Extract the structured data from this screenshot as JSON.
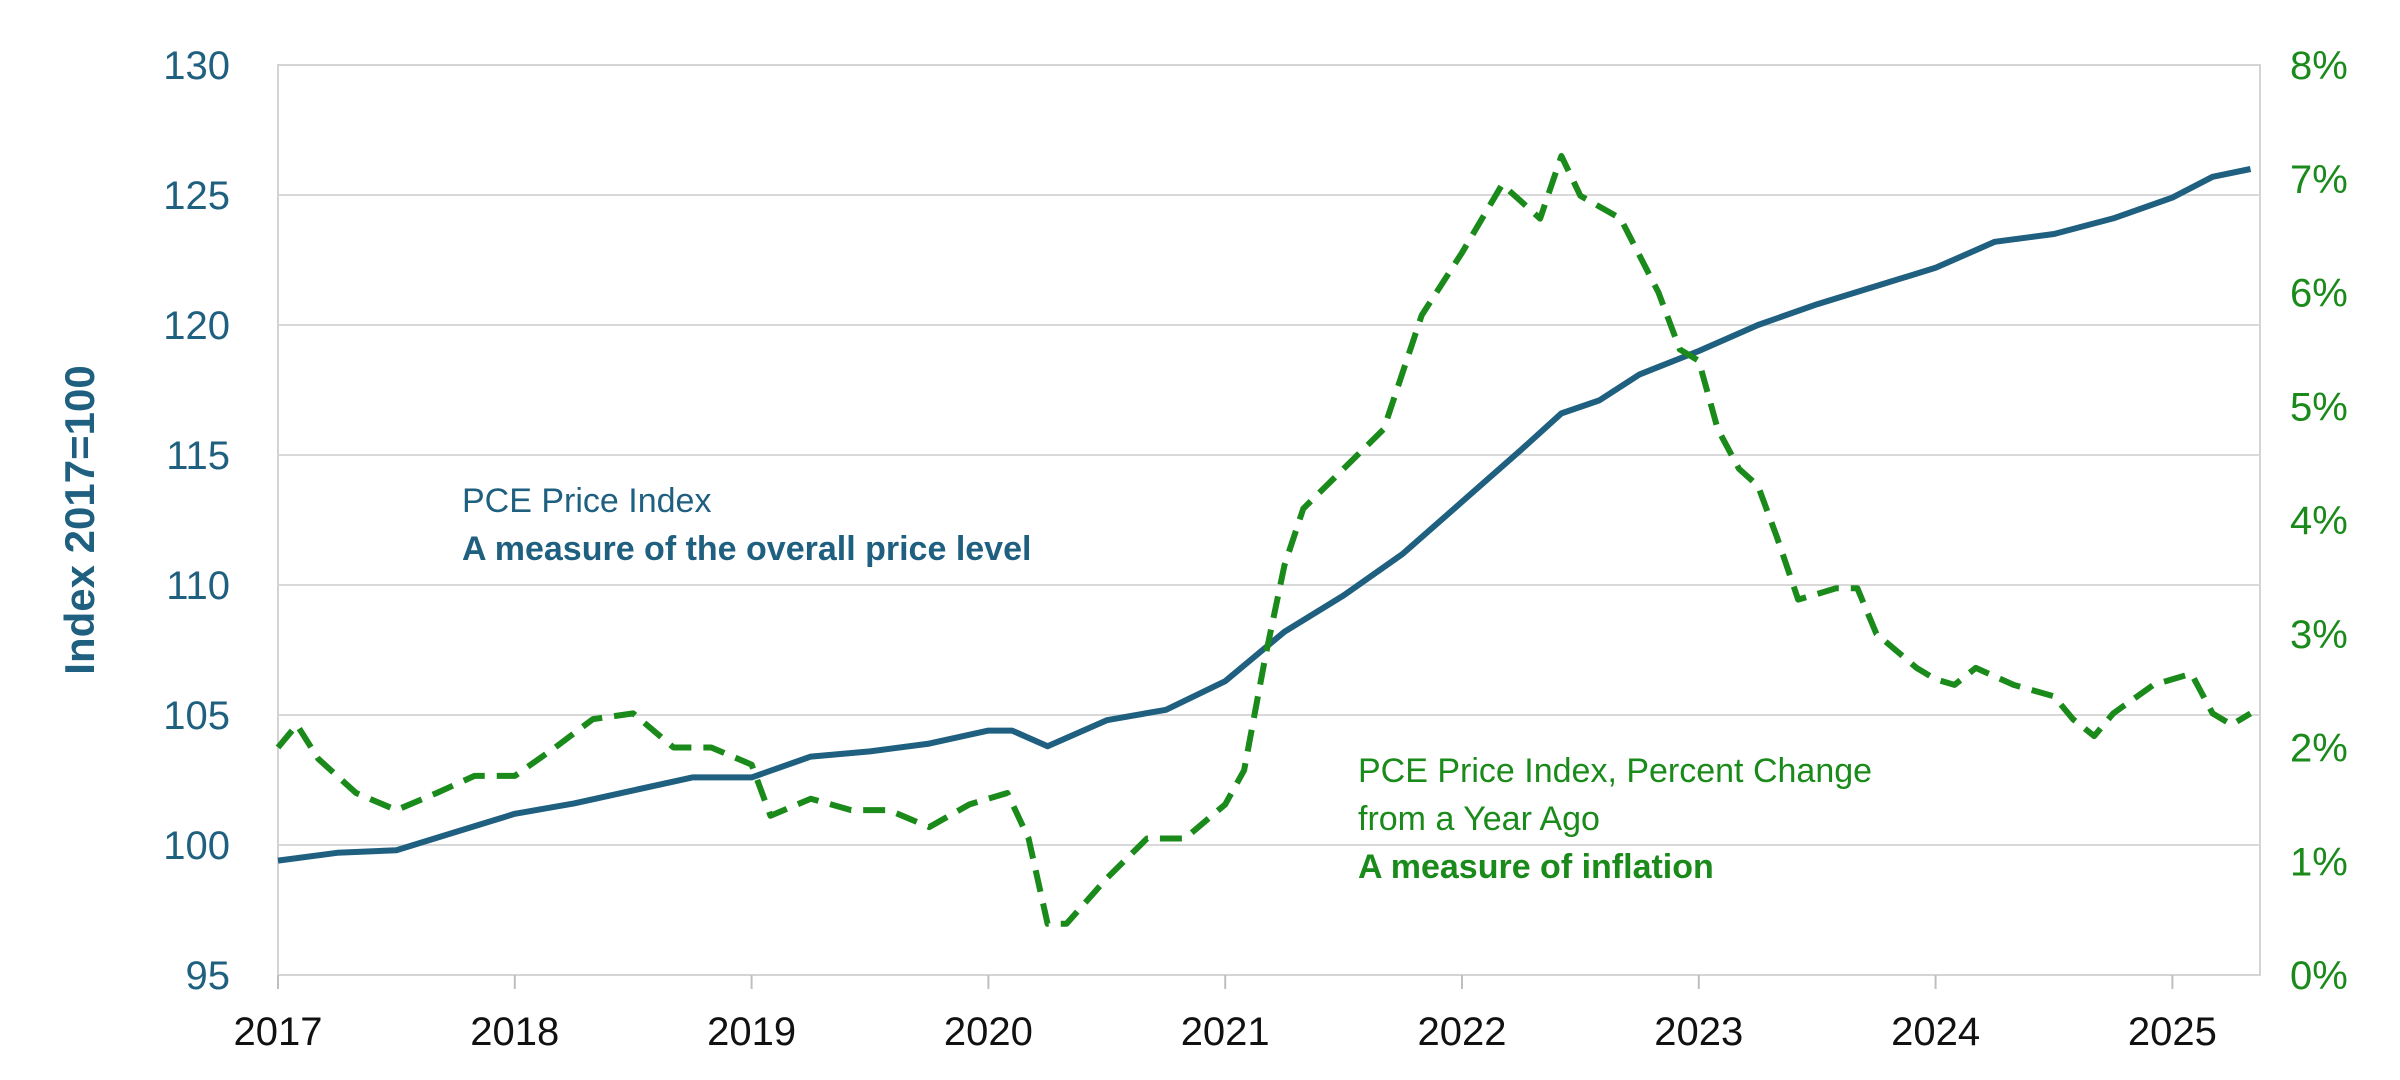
{
  "chart_data": {
    "type": "line",
    "title": "",
    "xlabel": "",
    "ylabel": "Index 2017=100",
    "xlim": [
      2017,
      2025.37
    ],
    "ylim": [
      95,
      130
    ],
    "y2lim": [
      0,
      8
    ],
    "x_ticks": [
      "2017",
      "2018",
      "2019",
      "2020",
      "2021",
      "2022",
      "2023",
      "2024",
      "2025"
    ],
    "y_ticks": [
      "95",
      "100",
      "105",
      "110",
      "115",
      "120",
      "125",
      "130"
    ],
    "y2_ticks": [
      "0%",
      "1%",
      "2%",
      "3%",
      "4%",
      "5%",
      "6%",
      "7%",
      "8%"
    ],
    "grid": true,
    "series": [
      {
        "name": "PCE Price Index",
        "axis": "left",
        "color": "#1f5f7f",
        "style": "solid",
        "points": [
          [
            2017.0,
            99.4
          ],
          [
            2017.25,
            99.7
          ],
          [
            2017.5,
            99.8
          ],
          [
            2017.75,
            100.5
          ],
          [
            2018.0,
            101.2
          ],
          [
            2018.25,
            101.6
          ],
          [
            2018.5,
            102.1
          ],
          [
            2018.75,
            102.6
          ],
          [
            2019.0,
            102.6
          ],
          [
            2019.25,
            103.4
          ],
          [
            2019.5,
            103.6
          ],
          [
            2019.75,
            103.9
          ],
          [
            2020.0,
            104.4
          ],
          [
            2020.1,
            104.4
          ],
          [
            2020.25,
            103.8
          ],
          [
            2020.5,
            104.8
          ],
          [
            2020.75,
            105.2
          ],
          [
            2021.0,
            106.3
          ],
          [
            2021.25,
            108.2
          ],
          [
            2021.5,
            109.6
          ],
          [
            2021.75,
            111.2
          ],
          [
            2022.0,
            113.2
          ],
          [
            2022.25,
            115.2
          ],
          [
            2022.42,
            116.6
          ],
          [
            2022.58,
            117.1
          ],
          [
            2022.75,
            118.1
          ],
          [
            2023.0,
            119.0
          ],
          [
            2023.25,
            120.0
          ],
          [
            2023.5,
            120.8
          ],
          [
            2023.75,
            121.5
          ],
          [
            2024.0,
            122.2
          ],
          [
            2024.25,
            123.2
          ],
          [
            2024.5,
            123.5
          ],
          [
            2024.75,
            124.1
          ],
          [
            2025.0,
            124.9
          ],
          [
            2025.17,
            125.7
          ],
          [
            2025.33,
            126.0
          ]
        ]
      },
      {
        "name": "PCE Price Index, Percent Change from a Year Ago",
        "axis": "right",
        "color": "#1a8a1a",
        "style": "dashed",
        "points": [
          [
            2017.0,
            2.0
          ],
          [
            2017.08,
            2.2
          ],
          [
            2017.17,
            1.9
          ],
          [
            2017.33,
            1.6
          ],
          [
            2017.5,
            1.45
          ],
          [
            2017.67,
            1.6
          ],
          [
            2017.83,
            1.75
          ],
          [
            2018.0,
            1.75
          ],
          [
            2018.17,
            2.0
          ],
          [
            2018.33,
            2.25
          ],
          [
            2018.5,
            2.3
          ],
          [
            2018.67,
            2.0
          ],
          [
            2018.83,
            2.0
          ],
          [
            2019.0,
            1.85
          ],
          [
            2019.08,
            1.4
          ],
          [
            2019.25,
            1.55
          ],
          [
            2019.42,
            1.45
          ],
          [
            2019.58,
            1.45
          ],
          [
            2019.75,
            1.3
          ],
          [
            2019.92,
            1.5
          ],
          [
            2020.08,
            1.6
          ],
          [
            2020.17,
            1.2
          ],
          [
            2020.25,
            0.45
          ],
          [
            2020.33,
            0.45
          ],
          [
            2020.5,
            0.85
          ],
          [
            2020.67,
            1.2
          ],
          [
            2020.83,
            1.2
          ],
          [
            2021.0,
            1.5
          ],
          [
            2021.08,
            1.8
          ],
          [
            2021.17,
            2.8
          ],
          [
            2021.25,
            3.6
          ],
          [
            2021.33,
            4.1
          ],
          [
            2021.5,
            4.45
          ],
          [
            2021.67,
            4.8
          ],
          [
            2021.83,
            5.8
          ],
          [
            2022.0,
            6.35
          ],
          [
            2022.17,
            6.95
          ],
          [
            2022.33,
            6.65
          ],
          [
            2022.42,
            7.2
          ],
          [
            2022.5,
            6.85
          ],
          [
            2022.67,
            6.65
          ],
          [
            2022.83,
            6.0
          ],
          [
            2022.92,
            5.5
          ],
          [
            2023.0,
            5.4
          ],
          [
            2023.08,
            4.8
          ],
          [
            2023.17,
            4.45
          ],
          [
            2023.25,
            4.3
          ],
          [
            2023.33,
            3.85
          ],
          [
            2023.42,
            3.3
          ],
          [
            2023.58,
            3.4
          ],
          [
            2023.67,
            3.4
          ],
          [
            2023.75,
            3.0
          ],
          [
            2023.92,
            2.7
          ],
          [
            2024.0,
            2.6
          ],
          [
            2024.08,
            2.55
          ],
          [
            2024.17,
            2.7
          ],
          [
            2024.33,
            2.55
          ],
          [
            2024.5,
            2.45
          ],
          [
            2024.58,
            2.25
          ],
          [
            2024.67,
            2.1
          ],
          [
            2024.75,
            2.3
          ],
          [
            2024.92,
            2.55
          ],
          [
            2025.0,
            2.6
          ],
          [
            2025.08,
            2.65
          ],
          [
            2025.17,
            2.3
          ],
          [
            2025.25,
            2.2
          ],
          [
            2025.33,
            2.3
          ]
        ]
      }
    ],
    "annotations": {
      "blue_line1": "PCE Price Index",
      "blue_line2": "A measure of the overall price level",
      "green_line1": "PCE Price Index, Percent Change",
      "green_line2": "from a Year Ago",
      "green_line3": "A measure of inflation"
    }
  }
}
